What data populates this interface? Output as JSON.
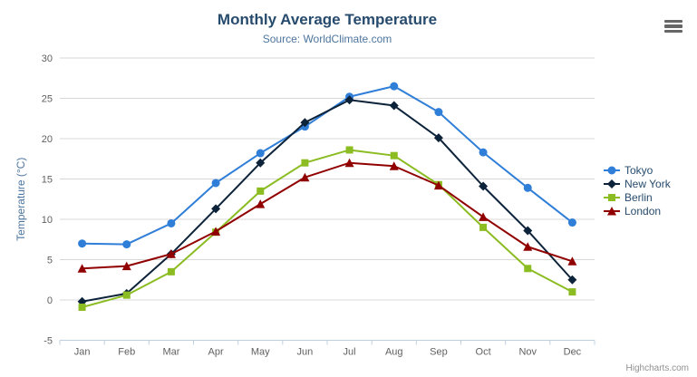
{
  "header": {
    "title": "Monthly Average Temperature",
    "subtitle": "Source: WorldClimate.com"
  },
  "credits": "Highcharts.com",
  "icons": {
    "menu": "hamburger-menu-icon"
  },
  "colors": {
    "title": "#274b6d",
    "subtitle": "#4d759e",
    "axis_title": "#4d759e",
    "axis_labels": "#606060",
    "gridline": "#d8d8d8",
    "axis_line": "#c0d0e0",
    "legend_text": "#274b6d",
    "credits_text": "#909090"
  },
  "chart_data": {
    "type": "line",
    "title": "Monthly Average Temperature",
    "subtitle": "Source: WorldClimate.com",
    "categories": [
      "Jan",
      "Feb",
      "Mar",
      "Apr",
      "May",
      "Jun",
      "Jul",
      "Aug",
      "Sep",
      "Oct",
      "Nov",
      "Dec"
    ],
    "series": [
      {
        "name": "Tokyo",
        "color": "#2f7ed8",
        "marker": "circle",
        "values": [
          7.0,
          6.9,
          9.5,
          14.5,
          18.2,
          21.5,
          25.2,
          26.5,
          23.3,
          18.3,
          13.9,
          9.6
        ]
      },
      {
        "name": "New York",
        "color": "#0d233a",
        "marker": "diamond",
        "values": [
          -0.2,
          0.8,
          5.7,
          11.3,
          17.0,
          22.0,
          24.8,
          24.1,
          20.1,
          14.1,
          8.6,
          2.5
        ]
      },
      {
        "name": "Berlin",
        "color": "#8bbc21",
        "marker": "square",
        "values": [
          -0.9,
          0.6,
          3.5,
          8.4,
          13.5,
          17.0,
          18.6,
          17.9,
          14.3,
          9.0,
          3.9,
          1.0
        ]
      },
      {
        "name": "London",
        "color": "#910000",
        "marker": "triangle",
        "values": [
          3.9,
          4.2,
          5.7,
          8.5,
          11.9,
          15.2,
          17.0,
          16.6,
          14.2,
          10.3,
          6.6,
          4.8
        ]
      }
    ],
    "xlabel": "",
    "ylabel": "Temperature (°C)",
    "ylim": [
      -5,
      30
    ],
    "ytick_step": 5,
    "yticks": [
      -5,
      0,
      5,
      10,
      15,
      20,
      25,
      30
    ],
    "grid": true,
    "legend_position": "right"
  }
}
